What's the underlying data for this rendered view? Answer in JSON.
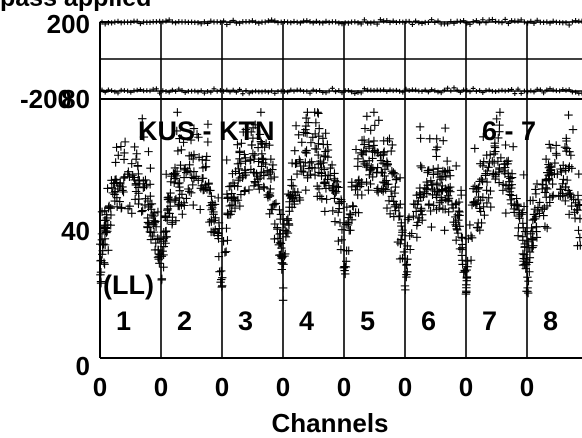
{
  "chart_data": {
    "type": "scatter",
    "title": "pass applied",
    "xlabel": "Channels",
    "ylabel": "",
    "baseline": "KUS - KTN",
    "corner_label": "6 - 7",
    "polarization": "(LL)",
    "phase_panel": {
      "yticks": [
        "200",
        "-200"
      ],
      "ylim": [
        -200,
        200
      ],
      "reference_lines": [
        200,
        80
      ]
    },
    "amp_panel": {
      "yticks": [
        "80",
        "40",
        "0"
      ],
      "ylim": [
        0,
        80
      ]
    },
    "spw_labels": [
      "1",
      "2",
      "3",
      "4",
      "5",
      "6",
      "7",
      "8"
    ],
    "xticks": [
      "0",
      "0",
      "0",
      "0",
      "0",
      "0",
      "0",
      "0",
      "0"
    ],
    "amplitude_profile": {
      "band_center_values": [
        58,
        60,
        63,
        66,
        64,
        56,
        60,
        58
      ],
      "band_edge_value": 18
    },
    "marker": "+",
    "grid": "vertical lines at subband boundaries"
  }
}
